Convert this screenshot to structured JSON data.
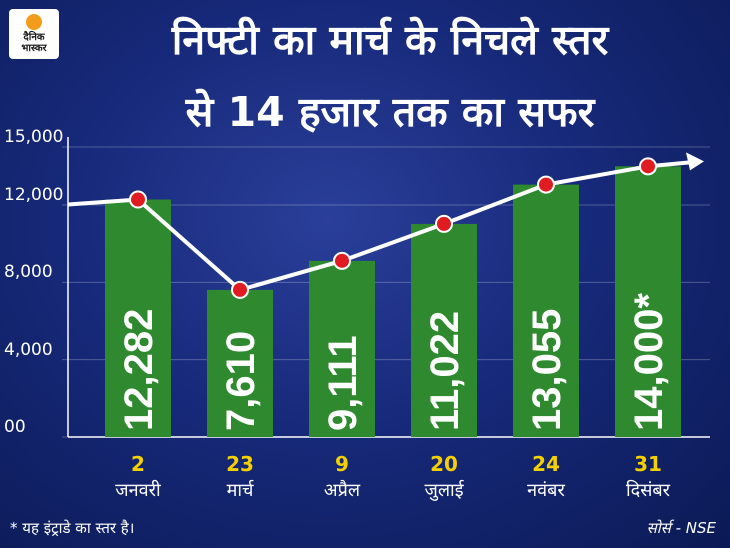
{
  "brand": {
    "line1": "दैनिक",
    "line2": "भास्कर"
  },
  "title_line1": "निफ्टी का मार्च के निचले स्तर",
  "title_line2": "से 14 हजार तक का सफर",
  "footnote": "* यह इंट्राडे का स्तर है।",
  "source": "सोर्स - NSE",
  "colors": {
    "bar": "#2f8a2f",
    "marker": "#e01b22",
    "line": "#ffffff",
    "date": "#f4d000"
  },
  "chart_data": {
    "type": "bar",
    "categories": [
      {
        "date": "2",
        "month": "जनवरी"
      },
      {
        "date": "23",
        "month": "मार्च"
      },
      {
        "date": "9",
        "month": "अप्रैल"
      },
      {
        "date": "20",
        "month": "जुलाई"
      },
      {
        "date": "24",
        "month": "नवंबर"
      },
      {
        "date": "31",
        "month": "दिसंबर"
      }
    ],
    "values": [
      12282,
      7610,
      9111,
      11022,
      13055,
      14000
    ],
    "value_labels": [
      "12,282",
      "7,610",
      "9,111",
      "11,022",
      "13,055",
      "14,000*"
    ],
    "yticks": [
      {
        "value": 0,
        "label": "00"
      },
      {
        "value": 4000,
        "label": "4,000"
      },
      {
        "value": 8000,
        "label": "8,000"
      },
      {
        "value": 12000,
        "label": "12,000"
      },
      {
        "value": 15000,
        "label": "15,000"
      }
    ],
    "overlay": "line-with-markers-and-arrow"
  }
}
